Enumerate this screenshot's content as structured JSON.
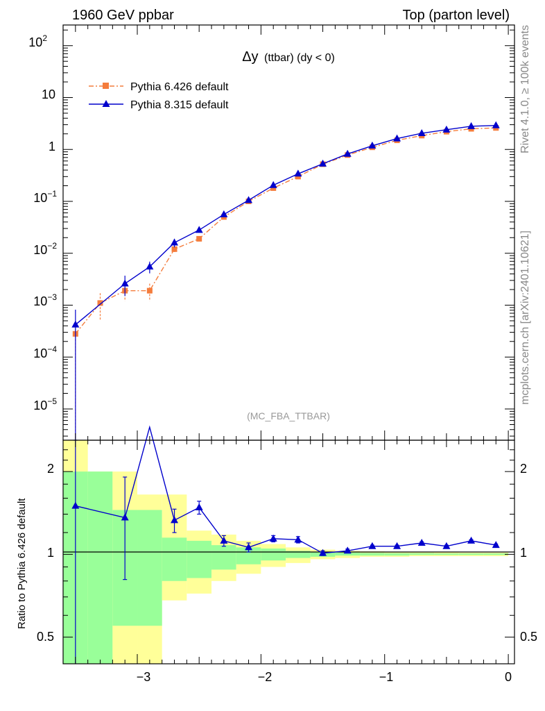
{
  "header": {
    "left": "1960 GeV ppbar",
    "right": "Top (parton level)"
  },
  "side_labels": {
    "rivet": "Rivet 4.1.0, ≥ 100k events",
    "mcplots": "mcplots.cern.ch [arXiv:2401.10621]"
  },
  "colors": {
    "pythia6": "#f47c3c",
    "pythia8": "#0000cc",
    "band_green": "#99ff99",
    "band_yellow": "#ffff99"
  },
  "chart_data": [
    {
      "type": "line",
      "panel": "main",
      "title_main": "Δy",
      "title_sub": "(ttbar) (dy < 0)",
      "watermark": "(MC_FBA_TTBAR)",
      "yscale": "log",
      "ylim": [
        2.5e-06,
        250
      ],
      "xlim": [
        -3.6,
        0.05
      ],
      "ytick_labels": [
        "10",
        "2",
        "10",
        "10",
        "1",
        "10",
        "−1",
        "10",
        "−2",
        "10",
        "−3",
        "10",
        "−4",
        "10",
        "−5"
      ],
      "ytick_values": [
        100,
        10,
        1,
        0.1,
        0.01,
        0.001,
        0.0001,
        1e-05
      ],
      "legend_position": "top-left",
      "series": [
        {
          "name": "Pythia 6.426 default",
          "marker": "square",
          "line": "dash-dot",
          "x": [
            -3.5,
            -3.3,
            -3.1,
            -2.9,
            -2.7,
            -2.5,
            -2.3,
            -2.1,
            -1.9,
            -1.7,
            -1.5,
            -1.3,
            -1.1,
            -0.9,
            -0.7,
            -0.5,
            -0.3,
            -0.1
          ],
          "y": [
            0.00028,
            0.0011,
            0.0019,
            0.0019,
            0.012,
            0.019,
            0.05,
            0.1,
            0.18,
            0.3,
            0.52,
            0.78,
            1.1,
            1.5,
            1.85,
            2.2,
            2.5,
            2.6
          ],
          "yerr_low": [
            0.00028,
            0.0006,
            0.0007,
            0.0007,
            0.0015,
            0.002,
            0.003,
            0.004,
            0.005,
            0.006,
            0.008,
            0.01,
            0.01,
            0.01,
            0.01,
            0.01,
            0.01,
            0.01
          ],
          "yerr_high": [
            0.0002,
            0.0006,
            0.0007,
            0.0007,
            0.0015,
            0.002,
            0.003,
            0.004,
            0.005,
            0.006,
            0.008,
            0.01,
            0.01,
            0.01,
            0.01,
            0.01,
            0.01,
            0.01
          ]
        },
        {
          "name": "Pythia 8.315 default",
          "marker": "triangle",
          "line": "solid",
          "x": [
            -3.5,
            -3.1,
            -2.9,
            -2.7,
            -2.5,
            -2.3,
            -2.1,
            -1.9,
            -1.7,
            -1.5,
            -1.3,
            -1.1,
            -0.9,
            -0.7,
            -0.5,
            -0.3,
            -0.1
          ],
          "y": [
            0.00042,
            0.0026,
            0.0055,
            0.016,
            0.028,
            0.056,
            0.105,
            0.205,
            0.34,
            0.53,
            0.82,
            1.18,
            1.62,
            2.05,
            2.4,
            2.8,
            2.9
          ],
          "yerr_low": [
            0.00042,
            0.0011,
            0.0014,
            0.003,
            0.003,
            0.004,
            0.005,
            0.006,
            0.008,
            0.01,
            0.01,
            0.01,
            0.01,
            0.01,
            0.01,
            0.01,
            0.01
          ],
          "yerr_high": [
            0.0004,
            0.0011,
            0.0014,
            0.003,
            0.003,
            0.004,
            0.005,
            0.006,
            0.008,
            0.01,
            0.01,
            0.01,
            0.01,
            0.01,
            0.01,
            0.01,
            0.01
          ]
        }
      ]
    },
    {
      "type": "line",
      "panel": "ratio",
      "ylabel": "Ratio to Pythia 6.426 default",
      "yscale": "log",
      "ylim": [
        0.4,
        2.6
      ],
      "xlim": [
        -3.6,
        0.05
      ],
      "ytick_labels": [
        "0.5",
        "1",
        "2"
      ],
      "ytick_values": [
        0.5,
        1,
        2
      ],
      "xtick_labels": [
        "−3",
        "−2",
        "−1",
        "0"
      ],
      "xtick_values": [
        -3,
        -2,
        -1,
        0
      ],
      "bin_edges": [
        -3.6,
        -3.4,
        -3.2,
        -3.0,
        -2.8,
        -2.6,
        -2.4,
        -2.2,
        -2.0,
        -1.8,
        -1.6,
        -1.4,
        -1.2,
        -1.0,
        -0.8,
        -0.6,
        -0.4,
        -0.2,
        0.0
      ],
      "band_green_low": [
        0.3,
        0.3,
        0.55,
        0.55,
        0.8,
        0.82,
        0.88,
        0.92,
        0.95,
        0.97,
        0.98,
        0.99,
        0.99,
        0.99,
        0.995,
        0.995,
        0.995,
        0.995
      ],
      "band_green_high": [
        2.0,
        2.0,
        1.45,
        1.45,
        1.15,
        1.12,
        1.08,
        1.06,
        1.05,
        1.03,
        1.02,
        1.015,
        1.012,
        1.01,
        1.01,
        1.008,
        1.008,
        1.008
      ],
      "band_yellow_low": [
        0.3,
        0.3,
        0.3,
        0.3,
        0.68,
        0.72,
        0.8,
        0.85,
        0.9,
        0.93,
        0.96,
        0.97,
        0.98,
        0.98,
        0.985,
        0.985,
        0.985,
        0.985
      ],
      "band_yellow_high": [
        2.6,
        2.0,
        2.0,
        1.65,
        1.65,
        1.22,
        1.18,
        1.12,
        1.09,
        1.06,
        1.04,
        1.03,
        1.025,
        1.02,
        1.02,
        1.018,
        1.015,
        1.015
      ],
      "series": [
        {
          "name": "Pythia 8.315 default",
          "x": [
            -3.5,
            -3.1,
            -2.9,
            -2.7,
            -2.5,
            -2.3,
            -2.1,
            -1.9,
            -1.7,
            -1.5,
            -1.3,
            -1.1,
            -0.9,
            -0.7,
            -0.5,
            -0.3,
            -0.1
          ],
          "y": [
            1.5,
            1.36,
            2.9,
            1.33,
            1.48,
            1.12,
            1.06,
            1.14,
            1.13,
            1.01,
            1.03,
            1.07,
            1.07,
            1.1,
            1.07,
            1.12,
            1.08
          ],
          "yerr_low": [
            1.3,
            0.55,
            0.0,
            0.13,
            0.08,
            0.05,
            0.04,
            0.03,
            0.03,
            0.02,
            0.015,
            0.01,
            0.01,
            0.01,
            0.01,
            0.01,
            0.01
          ],
          "yerr_high": [
            1.5,
            0.55,
            0.0,
            0.13,
            0.08,
            0.05,
            0.04,
            0.03,
            0.03,
            0.02,
            0.015,
            0.01,
            0.01,
            0.01,
            0.01,
            0.01,
            0.01
          ]
        }
      ]
    }
  ]
}
